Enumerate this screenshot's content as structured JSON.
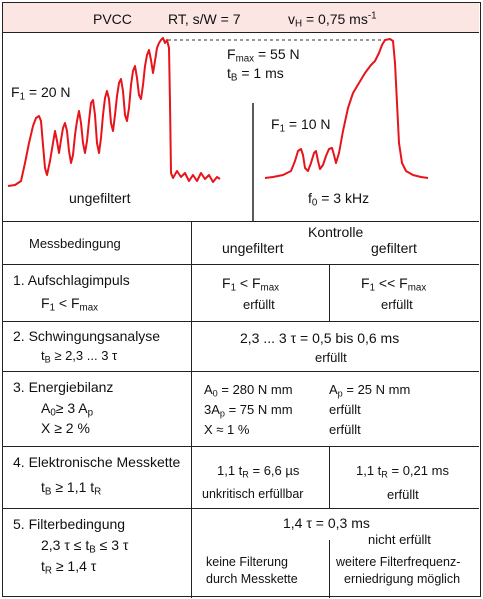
{
  "header": {
    "pvcc": "PVCC",
    "rt": "RT, s/W = 7",
    "vh_base": "v",
    "vh_sub": "H",
    "vh_value": "= 0,75 ms",
    "vh_sup": "-1"
  },
  "plots": {
    "left_label_f1": "F",
    "left_label_f1_sub": "1",
    "left_label_f1_val": "= 20 N",
    "fmax": "F",
    "fmax_sub": "max",
    "fmax_val": "= 55 N",
    "tb": "t",
    "tb_sub": "B",
    "tb_val": "= 1 ms",
    "right_label_f1": "F",
    "right_label_f1_sub": "1",
    "right_label_f1_val": "= 10 N",
    "left_caption": "ungefiltert",
    "f0": "f",
    "f0_sub": "0",
    "f0_val": "= 3 kHz",
    "trace_color": "#e8141b"
  },
  "table": {
    "col1_head": "Messbedingung",
    "kontrolle": "Kontrolle",
    "ungefiltert": "ungefiltert",
    "gefiltert": "gefiltert",
    "r1": {
      "title": "1. Aufschlagimpuls",
      "cond": "F",
      "cond_sub1": "1",
      "cond_op": "< F",
      "cond_sub2": "max",
      "u_text": "F",
      "u_sub1": "1",
      "u_op": "< F",
      "u_sub2": "max",
      "u_status": "erfüllt",
      "g_text": "F",
      "g_sub1": "1",
      "g_op": "<< F",
      "g_sub2": "max",
      "g_status": "erfüllt"
    },
    "r2": {
      "title": "2. Schwingungsanalyse",
      "cond_a": "t",
      "cond_sub": "B",
      "cond_b": "≥ 2,3 ... 3 τ",
      "value": "2,3 ... 3 τ = 0,5 bis 0,6 ms",
      "status": "erfüllt"
    },
    "r3": {
      "title": "3. Energiebilanz",
      "c1a": "A",
      "c1s": "0",
      "c1b": "≥ 3 A",
      "c1s2": "p",
      "c2": "X  ≥ 2 %",
      "v1a": "A",
      "v1s": "0",
      "v1b": "= 280 N mm",
      "v2a": "3A",
      "v2s": "p",
      "v2b": "= 75 N mm",
      "v3": "X ≈ 1 %",
      "w1a": "A",
      "w1s": "p",
      "w1b": "= 25 N mm",
      "w2": "erfüllt",
      "w3": "erfüllt"
    },
    "r4": {
      "title": "4. Elektronische Messkette",
      "cond_a": "t",
      "cond_s1": "B",
      "cond_b": "≥ 1,1  t",
      "cond_s2": "R",
      "u_a": "1,1 t",
      "u_s": "R",
      "u_b": "= 6,6 µs",
      "u_status": "unkritisch erfüllbar",
      "g_a": "1,1 t",
      "g_s": "R",
      "g_b": "= 0,21 ms",
      "g_status": "erfüllt"
    },
    "r5": {
      "title": "5. Filterbedingung",
      "c1a": "2,3 τ  ≤ t",
      "c1s": "B",
      "c1b": "≤ 3 τ",
      "c2a": "t",
      "c2s": "R",
      "c2b": "≥ 1,4 τ",
      "value": "1,4 τ = 0,3 ms",
      "not_met": "nicht erfüllt",
      "u1": "keine Filterung",
      "u2": "durch Messkette",
      "g1": "weitere Filterfrequenz-",
      "g2": "erniedrigung möglich"
    }
  }
}
